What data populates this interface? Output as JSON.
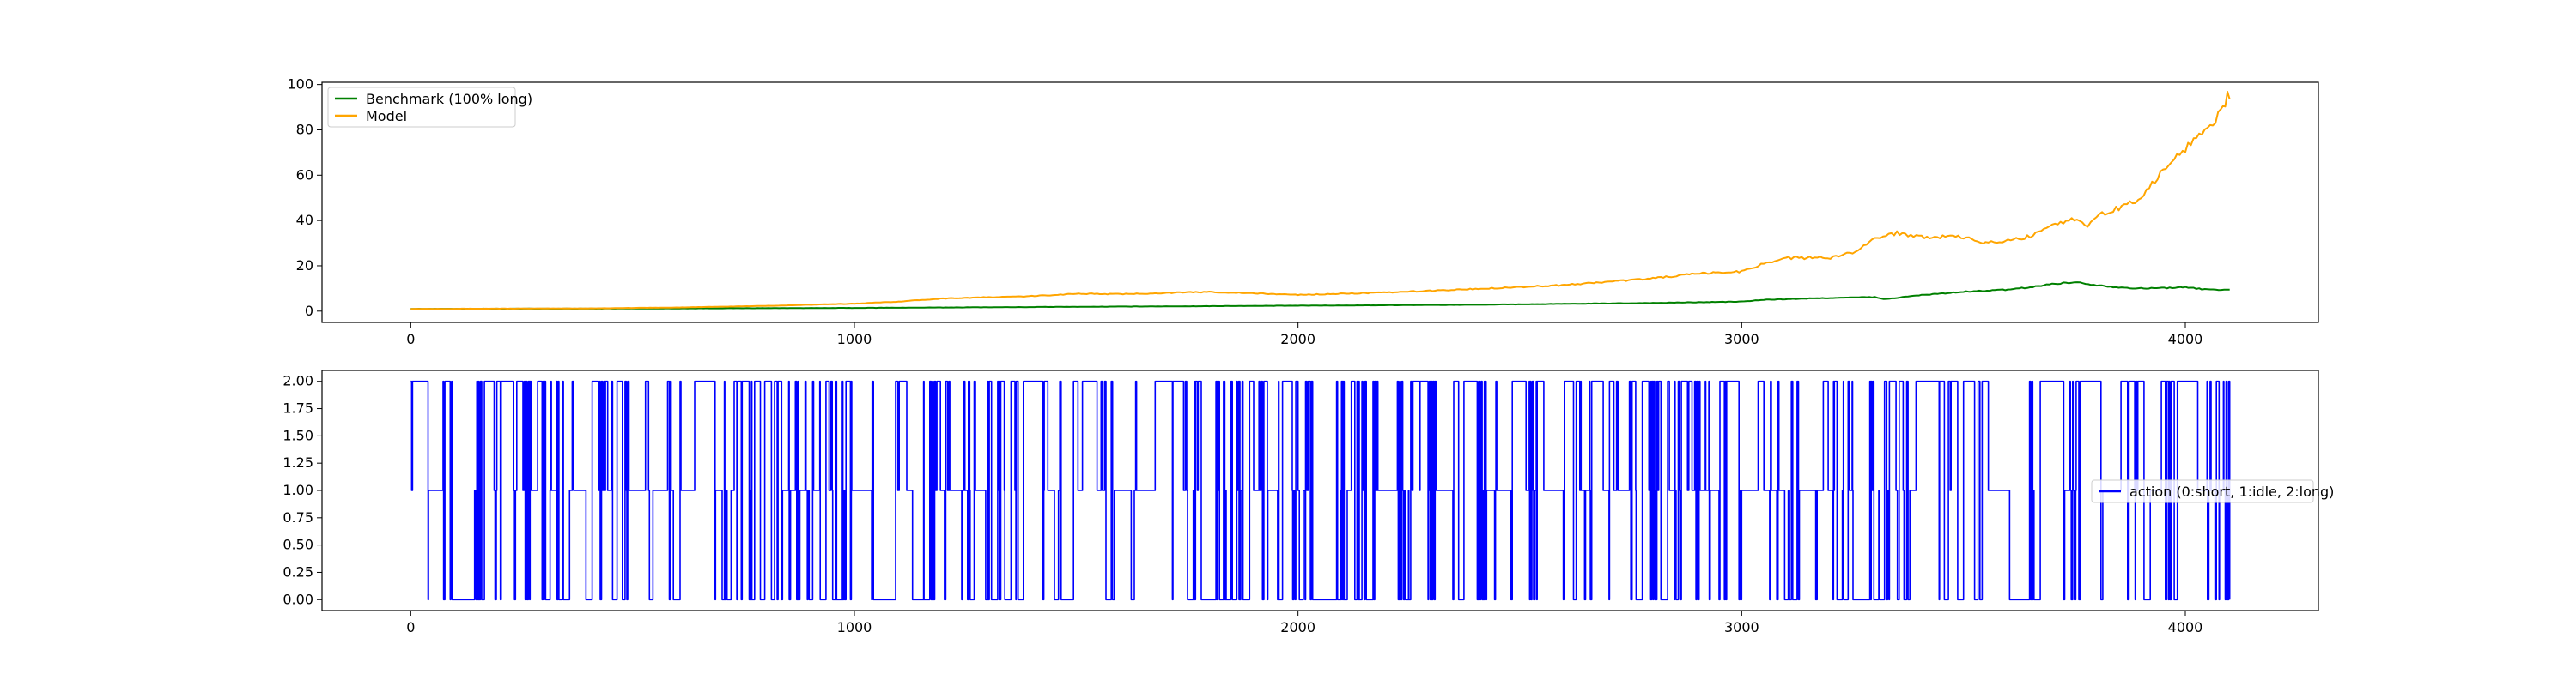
{
  "chart_data": [
    {
      "type": "line",
      "xlim": [
        -200,
        4300
      ],
      "ylim": [
        -5,
        101
      ],
      "xticks": [
        0,
        1000,
        2000,
        3000,
        4000
      ],
      "yticks": [
        0,
        20,
        40,
        60,
        80,
        100
      ],
      "grid": false,
      "legend_position": "top-left",
      "series": [
        {
          "name": "Benchmark (100% long)",
          "color": "#008000",
          "points": [
            [
              0,
              1.0
            ],
            [
              200,
              1.05
            ],
            [
              400,
              1.1
            ],
            [
              600,
              1.2
            ],
            [
              800,
              1.3
            ],
            [
              1000,
              1.4
            ],
            [
              1200,
              1.6
            ],
            [
              1400,
              1.8
            ],
            [
              1600,
              2.0
            ],
            [
              1800,
              2.2
            ],
            [
              2000,
              2.4
            ],
            [
              2200,
              2.6
            ],
            [
              2400,
              2.8
            ],
            [
              2600,
              3.2
            ],
            [
              2800,
              3.6
            ],
            [
              3000,
              4.2
            ],
            [
              3050,
              5.0
            ],
            [
              3200,
              5.8
            ],
            [
              3300,
              6.2
            ],
            [
              3320,
              5.2
            ],
            [
              3400,
              7.0
            ],
            [
              3500,
              8.5
            ],
            [
              3600,
              9.5
            ],
            [
              3650,
              10.5
            ],
            [
              3700,
              12.0
            ],
            [
              3750,
              12.8
            ],
            [
              3800,
              11.5
            ],
            [
              3850,
              10.5
            ],
            [
              3900,
              10.0
            ],
            [
              4000,
              10.5
            ],
            [
              4050,
              9.5
            ],
            [
              4100,
              9.5
            ]
          ]
        },
        {
          "name": "Model",
          "color": "#ffa500",
          "points": [
            [
              0,
              1.0
            ],
            [
              200,
              1.1
            ],
            [
              400,
              1.2
            ],
            [
              600,
              1.6
            ],
            [
              800,
              2.3
            ],
            [
              1000,
              3.3
            ],
            [
              1100,
              4.2
            ],
            [
              1200,
              5.6
            ],
            [
              1400,
              6.6
            ],
            [
              1500,
              7.7
            ],
            [
              1600,
              7.5
            ],
            [
              1800,
              8.5
            ],
            [
              2000,
              7.2
            ],
            [
              2200,
              8.2
            ],
            [
              2400,
              9.8
            ],
            [
              2600,
              11.5
            ],
            [
              2800,
              14.5
            ],
            [
              2900,
              16.5
            ],
            [
              3000,
              17.5
            ],
            [
              3050,
              21.0
            ],
            [
              3100,
              23.5
            ],
            [
              3200,
              23.5
            ],
            [
              3250,
              26.0
            ],
            [
              3300,
              32.0
            ],
            [
              3350,
              34.5
            ],
            [
              3400,
              33.0
            ],
            [
              3500,
              32.5
            ],
            [
              3550,
              30.0
            ],
            [
              3600,
              31.0
            ],
            [
              3650,
              33.0
            ],
            [
              3700,
              38.5
            ],
            [
              3750,
              40.5
            ],
            [
              3780,
              38.0
            ],
            [
              3800,
              42.0
            ],
            [
              3850,
              45.5
            ],
            [
              3900,
              50.0
            ],
            [
              3950,
              62.0
            ],
            [
              4000,
              72.0
            ],
            [
              4050,
              82.0
            ],
            [
              4080,
              87.0
            ],
            [
              4095,
              95.0
            ],
            [
              4100,
              93.5
            ]
          ]
        }
      ]
    },
    {
      "type": "line",
      "xlim": [
        -200,
        4300
      ],
      "ylim": [
        -0.1,
        2.1
      ],
      "xticks": [
        0,
        1000,
        2000,
        3000,
        4000
      ],
      "yticks": [
        "0.00",
        "0.25",
        "0.50",
        "0.75",
        "1.00",
        "1.25",
        "1.50",
        "1.75",
        "2.00"
      ],
      "grid": false,
      "legend_position": "center-right",
      "series": [
        {
          "name": "action (0:short, 1:idle, 2:long)",
          "color": "#0000ff",
          "step": true,
          "x_max": 4100,
          "values_domain": [
            0,
            1,
            2
          ]
        }
      ]
    }
  ]
}
